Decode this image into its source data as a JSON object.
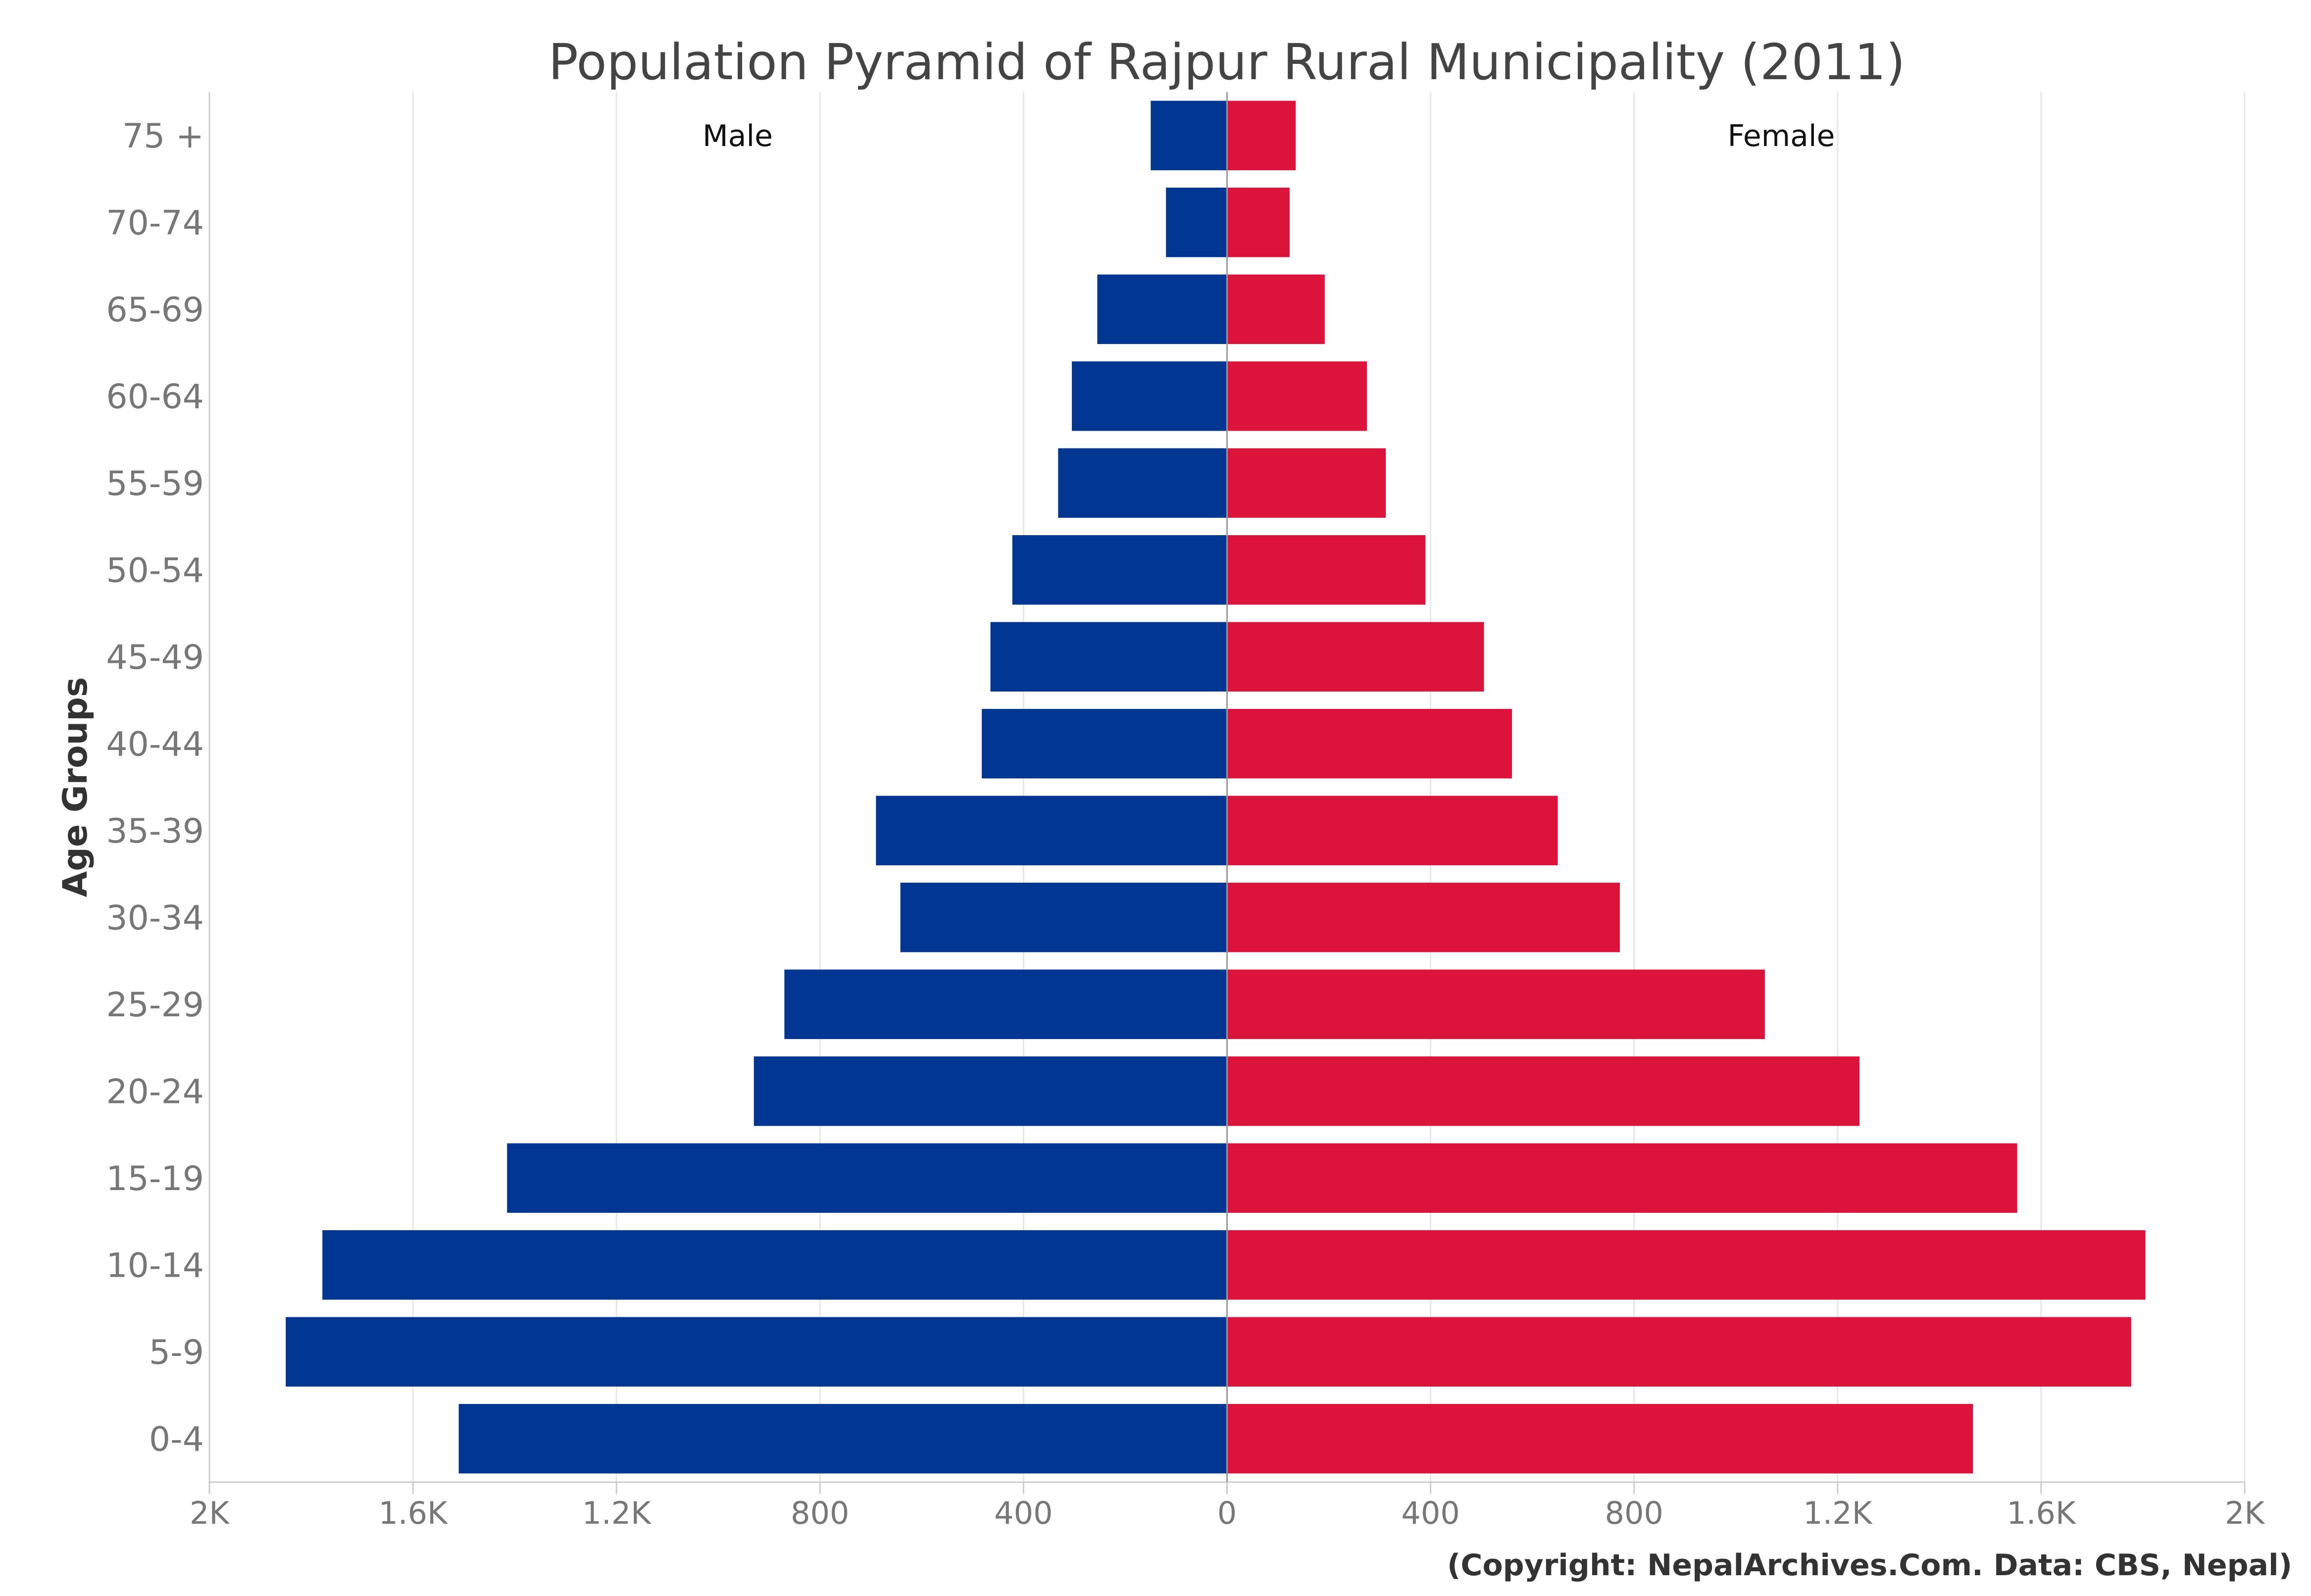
{
  "chart_data": {
    "type": "bar",
    "orientation": "horizontal-diverging",
    "title": "Population Pyramid of Rajpur Rural Municipality (2011)",
    "ylabel": "Age Groups",
    "xlabel": "",
    "xlim": [
      -2000,
      2000
    ],
    "x_ticks": [
      -2000,
      -1600,
      -1200,
      -800,
      -400,
      0,
      400,
      800,
      1200,
      1600,
      2000
    ],
    "x_tick_labels": [
      "2K",
      "1.6K",
      "1.2K",
      "800",
      "400",
      "0",
      "400",
      "800",
      "1.2K",
      "1.6K",
      "2K"
    ],
    "categories": [
      "75 +",
      "70-74",
      "65-69",
      "60-64",
      "55-59",
      "50-54",
      "45-49",
      "40-44",
      "35-39",
      "30-34",
      "25-29",
      "20-24",
      "15-19",
      "10-14",
      "5-9",
      "0-4"
    ],
    "series": [
      {
        "name": "Male",
        "color": "#023693",
        "values": [
          150,
          120,
          255,
          305,
          332,
          422,
          465,
          482,
          690,
          642,
          870,
          930,
          1415,
          1778,
          1850,
          1510
        ]
      },
      {
        "name": "Female",
        "color": "#dc143c",
        "values": [
          135,
          123,
          192,
          275,
          312,
          390,
          505,
          560,
          650,
          772,
          1057,
          1243,
          1553,
          1805,
          1777,
          1466
        ]
      }
    ],
    "grid": true,
    "legend": "none"
  },
  "credit": "(Copyright: NepalArchives.Com. Data: CBS, Nepal)"
}
